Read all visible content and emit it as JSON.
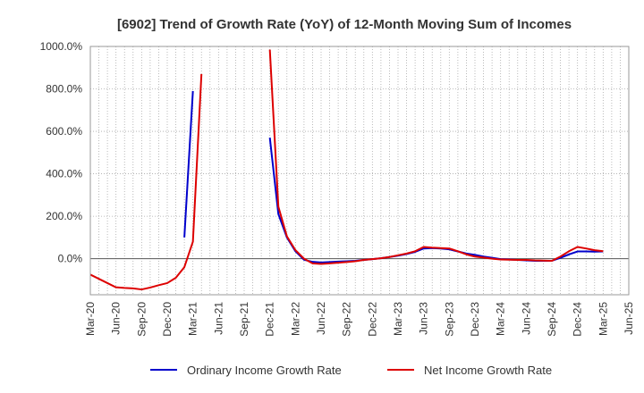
{
  "chart_data": {
    "type": "line",
    "title": "[6902]  Trend of Growth Rate (YoY) of 12-Month Moving Sum of Incomes",
    "xlabel": "",
    "ylabel": "",
    "ylim": [
      -170,
      1000
    ],
    "y_ticks": [
      {
        "value": 0,
        "label": "0.0%"
      },
      {
        "value": 200,
        "label": "200.0%"
      },
      {
        "value": 400,
        "label": "400.0%"
      },
      {
        "value": 600,
        "label": "600.0%"
      },
      {
        "value": 800,
        "label": "800.0%"
      },
      {
        "value": 1000,
        "label": "1000.0%"
      }
    ],
    "x_tick_labels": [
      "Mar-20",
      "Jun-20",
      "Sep-20",
      "Dec-20",
      "Mar-21",
      "Jun-21",
      "Sep-21",
      "Dec-21",
      "Mar-22",
      "Jun-22",
      "Sep-22",
      "Dec-22",
      "Mar-23",
      "Jun-23",
      "Sep-23",
      "Dec-23",
      "Mar-24",
      "Jun-24",
      "Sep-24",
      "Dec-24",
      "Mar-25",
      "Jun-25"
    ],
    "x_range": [
      "2020-03",
      "2025-06"
    ],
    "grid": true,
    "legend_position": "bottom",
    "series": [
      {
        "name": "Ordinary Income Growth Rate",
        "color": "#0000cc",
        "points": [
          [
            "2021-02",
            100
          ],
          [
            "2021-03",
            790
          ],
          [
            "2021-12",
            570
          ],
          [
            "2022-01",
            210
          ],
          [
            "2022-02",
            100
          ],
          [
            "2022-03",
            35
          ],
          [
            "2022-04",
            -5
          ],
          [
            "2022-05",
            -15
          ],
          [
            "2022-06",
            -18
          ],
          [
            "2022-07",
            -16
          ],
          [
            "2022-08",
            -14
          ],
          [
            "2022-09",
            -12
          ],
          [
            "2022-10",
            -10
          ],
          [
            "2022-11",
            -6
          ],
          [
            "2022-12",
            -2
          ],
          [
            "2023-01",
            2
          ],
          [
            "2023-02",
            8
          ],
          [
            "2023-03",
            14
          ],
          [
            "2023-04",
            22
          ],
          [
            "2023-05",
            32
          ],
          [
            "2023-06",
            48
          ],
          [
            "2023-07",
            50
          ],
          [
            "2023-08",
            48
          ],
          [
            "2023-09",
            44
          ],
          [
            "2023-10",
            34
          ],
          [
            "2023-11",
            24
          ],
          [
            "2023-12",
            18
          ],
          [
            "2024-01",
            10
          ],
          [
            "2024-02",
            4
          ],
          [
            "2024-03",
            -2
          ],
          [
            "2024-04",
            -4
          ],
          [
            "2024-05",
            -6
          ],
          [
            "2024-06",
            -8
          ],
          [
            "2024-07",
            -10
          ],
          [
            "2024-08",
            -10
          ],
          [
            "2024-09",
            -10
          ],
          [
            "2024-10",
            4
          ],
          [
            "2024-11",
            20
          ],
          [
            "2024-12",
            34
          ],
          [
            "2025-01",
            34
          ],
          [
            "2025-02",
            33
          ],
          [
            "2025-03",
            34
          ]
        ]
      },
      {
        "name": "Net Income Growth Rate",
        "color": "#dd0000",
        "points": [
          [
            "2020-03",
            -75
          ],
          [
            "2020-04",
            -95
          ],
          [
            "2020-05",
            -115
          ],
          [
            "2020-06",
            -135
          ],
          [
            "2020-07",
            -138
          ],
          [
            "2020-08",
            -140
          ],
          [
            "2020-09",
            -145
          ],
          [
            "2020-10",
            -136
          ],
          [
            "2020-11",
            -125
          ],
          [
            "2020-12",
            -115
          ],
          [
            "2021-01",
            -90
          ],
          [
            "2021-02",
            -40
          ],
          [
            "2021-03",
            80
          ],
          [
            "2021-04",
            870
          ],
          [
            "2021-12",
            985
          ],
          [
            "2022-01",
            245
          ],
          [
            "2022-02",
            105
          ],
          [
            "2022-03",
            40
          ],
          [
            "2022-04",
            0
          ],
          [
            "2022-05",
            -22
          ],
          [
            "2022-06",
            -25
          ],
          [
            "2022-07",
            -22
          ],
          [
            "2022-08",
            -19
          ],
          [
            "2022-09",
            -16
          ],
          [
            "2022-10",
            -12
          ],
          [
            "2022-11",
            -6
          ],
          [
            "2022-12",
            -2
          ],
          [
            "2023-01",
            2
          ],
          [
            "2023-02",
            8
          ],
          [
            "2023-03",
            16
          ],
          [
            "2023-04",
            24
          ],
          [
            "2023-05",
            35
          ],
          [
            "2023-06",
            55
          ],
          [
            "2023-07",
            52
          ],
          [
            "2023-08",
            50
          ],
          [
            "2023-09",
            48
          ],
          [
            "2023-10",
            35
          ],
          [
            "2023-11",
            20
          ],
          [
            "2023-12",
            10
          ],
          [
            "2024-01",
            5
          ],
          [
            "2024-02",
            0
          ],
          [
            "2024-03",
            -4
          ],
          [
            "2024-04",
            -5
          ],
          [
            "2024-05",
            -6
          ],
          [
            "2024-06",
            -6
          ],
          [
            "2024-07",
            -8
          ],
          [
            "2024-08",
            -9
          ],
          [
            "2024-09",
            -10
          ],
          [
            "2024-10",
            10
          ],
          [
            "2024-11",
            35
          ],
          [
            "2024-12",
            55
          ],
          [
            "2025-01",
            48
          ],
          [
            "2025-02",
            40
          ],
          [
            "2025-03",
            35
          ]
        ]
      }
    ]
  }
}
